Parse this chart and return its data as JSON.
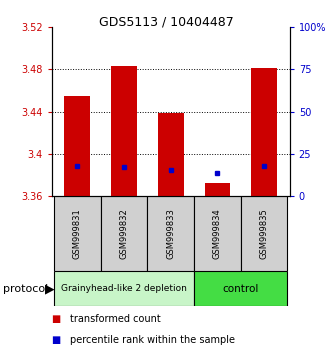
{
  "title": "GDS5113 / 10404487",
  "samples": [
    "GSM999831",
    "GSM999832",
    "GSM999833",
    "GSM999834",
    "GSM999835"
  ],
  "bar_bottoms": [
    3.36,
    3.36,
    3.36,
    3.36,
    3.36
  ],
  "bar_tops": [
    3.455,
    3.483,
    3.439,
    3.373,
    3.481
  ],
  "percentile_values": [
    3.389,
    3.388,
    3.385,
    3.382,
    3.389
  ],
  "ylim_left": [
    3.36,
    3.52
  ],
  "ylim_right": [
    0,
    100
  ],
  "yticks_left": [
    3.36,
    3.4,
    3.44,
    3.48,
    3.52
  ],
  "yticks_right": [
    0,
    25,
    50,
    75,
    100
  ],
  "ytick_labels_left": [
    "3.36",
    "3.4",
    "3.44",
    "3.48",
    "3.52"
  ],
  "ytick_labels_right": [
    "0",
    "25",
    "50",
    "75",
    "100%"
  ],
  "grid_lines": [
    3.4,
    3.44,
    3.48
  ],
  "groups": [
    {
      "label": "Grainyhead-like 2 depletion",
      "n_samples": 3,
      "facecolor": "#c8f5c8",
      "edgecolor": "#000000"
    },
    {
      "label": "control",
      "n_samples": 2,
      "facecolor": "#44dd44",
      "edgecolor": "#000000"
    }
  ],
  "bar_color": "#cc0000",
  "percentile_color": "#0000cc",
  "tick_label_color_left": "#cc0000",
  "tick_label_color_right": "#0000cc",
  "protocol_label": "protocol",
  "legend_items": [
    {
      "color": "#cc0000",
      "label": "transformed count"
    },
    {
      "color": "#0000cc",
      "label": "percentile rank within the sample"
    }
  ],
  "bar_width": 0.55,
  "sample_box_color": "#d0d0d0",
  "title_fontsize": 9,
  "tick_fontsize": 7,
  "sample_fontsize": 6,
  "legend_fontsize": 7,
  "protocol_fontsize": 8,
  "group_label_fontsize": 6.5
}
